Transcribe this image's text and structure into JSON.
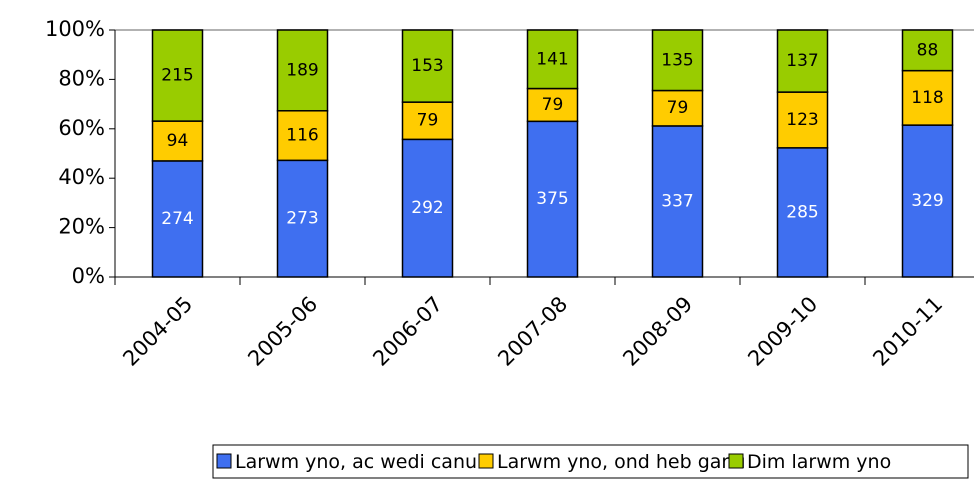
{
  "chart_data": {
    "type": "stacked_percent_bar",
    "categories": [
      "2004-05",
      "2005-06",
      "2006-07",
      "2007-08",
      "2008-09",
      "2009-10",
      "2010-11"
    ],
    "series": [
      {
        "name": "Larwm yno, ac wedi canu",
        "color": "#3f6ff0",
        "label_color": "#ffffff",
        "values": [
          274,
          273,
          292,
          375,
          337,
          285,
          329
        ]
      },
      {
        "name": "Larwm yno, ond heb ganu",
        "color": "#ffcc00",
        "label_color": "#000000",
        "values": [
          94,
          116,
          79,
          79,
          79,
          123,
          118
        ]
      },
      {
        "name": "Dim larwm yno",
        "color": "#99cc00",
        "label_color": "#000000",
        "values": [
          215,
          189,
          153,
          141,
          135,
          137,
          88
        ]
      }
    ],
    "ylim": [
      0,
      100
    ],
    "yticks": [
      {
        "value": 0,
        "label": "0%"
      },
      {
        "value": 20,
        "label": "20%"
      },
      {
        "value": 40,
        "label": "40%"
      },
      {
        "value": 60,
        "label": "60%"
      },
      {
        "value": 80,
        "label": "80%"
      },
      {
        "value": 100,
        "label": "100%"
      }
    ],
    "legend": "bottom"
  }
}
